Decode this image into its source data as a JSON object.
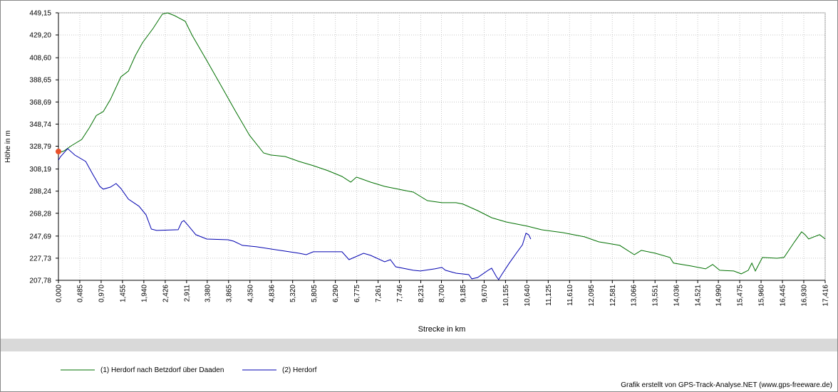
{
  "chart_data": {
    "type": "line",
    "x_label": "Strecke  in  km",
    "y_label": "Höhe  in  m",
    "footer": "Grafik erstellt von GPS-Track-Analyse.NET (www.gps-freeware.de)",
    "xlim": [
      0,
      17.416
    ],
    "ylim": [
      207.78,
      449.15
    ],
    "grid": true,
    "yticks": [
      {
        "value": 207.78,
        "label": "207,78"
      },
      {
        "value": 227.73,
        "label": "227,73"
      },
      {
        "value": 247.69,
        "label": "247,69"
      },
      {
        "value": 268.28,
        "label": "268,28"
      },
      {
        "value": 288.24,
        "label": "288,24"
      },
      {
        "value": 308.19,
        "label": "308,19"
      },
      {
        "value": 328.79,
        "label": "328,79"
      },
      {
        "value": 348.74,
        "label": "348,74"
      },
      {
        "value": 368.69,
        "label": "368,69"
      },
      {
        "value": 388.65,
        "label": "388,65"
      },
      {
        "value": 408.6,
        "label": "408,60"
      },
      {
        "value": 429.2,
        "label": "429,20"
      },
      {
        "value": 449.15,
        "label": "449,15"
      }
    ],
    "xticks": [
      {
        "value": 0,
        "label": "0,000"
      },
      {
        "value": 0.485,
        "label": "0,485"
      },
      {
        "value": 0.97,
        "label": "0,970"
      },
      {
        "value": 1.455,
        "label": "1,455"
      },
      {
        "value": 1.94,
        "label": "1,940"
      },
      {
        "value": 2.426,
        "label": "2,426"
      },
      {
        "value": 2.911,
        "label": "2,911"
      },
      {
        "value": 3.38,
        "label": "3,380"
      },
      {
        "value": 3.865,
        "label": "3,865"
      },
      {
        "value": 4.35,
        "label": "4,350"
      },
      {
        "value": 4.836,
        "label": "4,836"
      },
      {
        "value": 5.32,
        "label": "5,320"
      },
      {
        "value": 5.805,
        "label": "5,805"
      },
      {
        "value": 6.29,
        "label": "6,290"
      },
      {
        "value": 6.775,
        "label": "6,775"
      },
      {
        "value": 7.261,
        "label": "7,261"
      },
      {
        "value": 7.746,
        "label": "7,746"
      },
      {
        "value": 8.231,
        "label": "8,231"
      },
      {
        "value": 8.7,
        "label": "8,700"
      },
      {
        "value": 9.185,
        "label": "9,185"
      },
      {
        "value": 9.67,
        "label": "9,670"
      },
      {
        "value": 10.155,
        "label": "10,155"
      },
      {
        "value": 10.64,
        "label": "10,640"
      },
      {
        "value": 11.125,
        "label": "11,125"
      },
      {
        "value": 11.61,
        "label": "11,610"
      },
      {
        "value": 12.095,
        "label": "12,095"
      },
      {
        "value": 12.581,
        "label": "12,581"
      },
      {
        "value": 13.066,
        "label": "13,066"
      },
      {
        "value": 13.551,
        "label": "13,551"
      },
      {
        "value": 14.036,
        "label": "14,036"
      },
      {
        "value": 14.521,
        "label": "14,521"
      },
      {
        "value": 14.99,
        "label": "14,990"
      },
      {
        "value": 15.475,
        "label": "15,475"
      },
      {
        "value": 15.96,
        "label": "15,960"
      },
      {
        "value": 16.445,
        "label": "16,445"
      },
      {
        "value": 16.93,
        "label": "16,930"
      },
      {
        "value": 17.416,
        "label": "17,416"
      }
    ],
    "series": [
      {
        "name": "(1) Herdorf nach Betzdorf über Daaden",
        "color": "#007000",
        "x": [
          0,
          0.13,
          0.29,
          0.53,
          0.7,
          0.86,
          1.02,
          1.18,
          1.42,
          1.59,
          1.75,
          1.91,
          2.15,
          2.36,
          2.48,
          2.64,
          2.88,
          3.04,
          3.37,
          3.69,
          4.01,
          4.34,
          4.66,
          4.82,
          5.15,
          5.47,
          5.79,
          6.12,
          6.44,
          6.64,
          6.77,
          7.09,
          7.41,
          7.9,
          8.06,
          8.38,
          8.71,
          9.03,
          9.19,
          9.52,
          9.84,
          10.17,
          10.65,
          10.97,
          11.46,
          11.95,
          12.27,
          12.75,
          13.08,
          13.24,
          13.56,
          13.89,
          13.97,
          14.37,
          14.7,
          14.86,
          15.02,
          15.34,
          15.51,
          15.67,
          15.75,
          15.83,
          15.99,
          16.32,
          16.48,
          16.72,
          16.88,
          16.96,
          17.04,
          17.29,
          17.416
        ],
        "values": [
          322.7,
          324.6,
          329.1,
          334.9,
          345.2,
          356.4,
          360.1,
          370.9,
          391.4,
          396.6,
          410.7,
          422.2,
          435.0,
          447.9,
          449.1,
          446.6,
          441.5,
          428.7,
          406.1,
          383.7,
          361.2,
          338.7,
          322.7,
          320.8,
          319.5,
          315.0,
          311.2,
          306.7,
          301.5,
          296.4,
          300.9,
          296.4,
          292.5,
          288.6,
          287.4,
          279.7,
          277.8,
          277.8,
          276.5,
          270.7,
          264.3,
          260.4,
          256.6,
          253.4,
          250.8,
          247.0,
          242.5,
          239.3,
          230.9,
          234.8,
          232.2,
          228.4,
          223.3,
          220.7,
          218.1,
          222.0,
          216.8,
          216.2,
          213.6,
          216.8,
          223.3,
          216.2,
          228.4,
          227.7,
          228.4,
          242.5,
          251.5,
          249.0,
          245.1,
          249.0,
          245.1
        ]
      },
      {
        "name": "(2) Herdorf",
        "color": "#0000b0",
        "x": [
          0,
          0.05,
          0.21,
          0.37,
          0.62,
          0.78,
          0.94,
          1.02,
          1.18,
          1.31,
          1.42,
          1.59,
          1.83,
          1.99,
          2.11,
          2.23,
          2.72,
          2.8,
          2.85,
          2.96,
          3.12,
          3.37,
          3.85,
          3.98,
          4.18,
          4.5,
          5.15,
          5.47,
          5.63,
          5.79,
          6.44,
          6.6,
          6.93,
          7.09,
          7.41,
          7.54,
          7.66,
          8.06,
          8.22,
          8.55,
          8.71,
          8.79,
          9.03,
          9.32,
          9.39,
          9.52,
          9.76,
          9.84,
          9.95,
          10.0,
          10.08,
          10.24,
          10.41,
          10.54,
          10.62,
          10.68,
          10.73
        ],
        "values": [
          316.3,
          319.5,
          326.6,
          320.8,
          315.0,
          303.4,
          292.5,
          290.0,
          291.9,
          295.1,
          290.6,
          281.0,
          274.6,
          266.9,
          254.0,
          252.8,
          253.4,
          260.4,
          261.7,
          256.6,
          248.9,
          245.0,
          244.4,
          243.1,
          239.3,
          238.0,
          234.1,
          232.2,
          230.9,
          233.5,
          233.5,
          226.4,
          232.2,
          230.3,
          224.5,
          226.4,
          220.0,
          216.8,
          216.2,
          218.1,
          219.4,
          216.8,
          214.2,
          212.9,
          209.1,
          210.3,
          216.8,
          218.7,
          211.0,
          208.4,
          213.6,
          223.3,
          232.8,
          239.9,
          250.2,
          248.9,
          245.0
        ]
      }
    ]
  }
}
